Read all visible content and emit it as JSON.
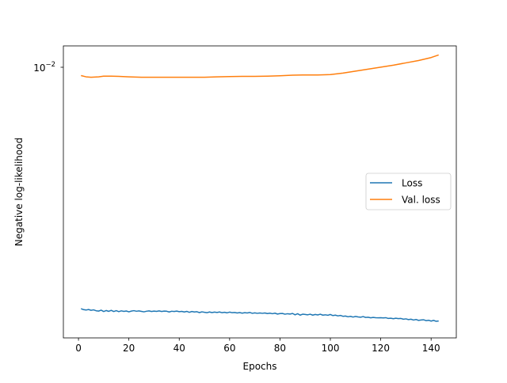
{
  "chart_data": {
    "type": "line",
    "title": "",
    "xlabel": "Epochs",
    "ylabel": "Negative log-likelihood",
    "y_scale": "log",
    "xlim": [
      -6,
      150
    ],
    "ylim": [
      0.00262,
      0.0113
    ],
    "x_ticks": [
      0,
      20,
      40,
      60,
      80,
      100,
      120,
      140
    ],
    "x_tick_labels": [
      "0",
      "20",
      "40",
      "60",
      "80",
      "100",
      "120",
      "140"
    ],
    "y_tick_base": "10",
    "y_tick_exponent": "−2",
    "legend_position": "center-right",
    "grid": false,
    "series": [
      {
        "name": "Loss",
        "color": "#1f77b4",
        "x": [
          1,
          2,
          3,
          4,
          5,
          6,
          7,
          8,
          9,
          10,
          11,
          12,
          13,
          14,
          15,
          16,
          17,
          18,
          19,
          20,
          21,
          22,
          23,
          24,
          25,
          26,
          27,
          28,
          29,
          30,
          31,
          32,
          33,
          34,
          35,
          36,
          37,
          38,
          39,
          40,
          41,
          42,
          43,
          44,
          45,
          46,
          47,
          48,
          49,
          50,
          51,
          52,
          53,
          54,
          55,
          56,
          57,
          58,
          59,
          60,
          61,
          62,
          63,
          64,
          65,
          66,
          67,
          68,
          69,
          70,
          71,
          72,
          73,
          74,
          75,
          76,
          77,
          78,
          79,
          80,
          81,
          82,
          83,
          84,
          85,
          86,
          87,
          88,
          89,
          90,
          91,
          92,
          93,
          94,
          95,
          96,
          97,
          98,
          99,
          100,
          101,
          102,
          103,
          104,
          105,
          106,
          107,
          108,
          109,
          110,
          111,
          112,
          113,
          114,
          115,
          116,
          117,
          118,
          119,
          120,
          121,
          122,
          123,
          124,
          125,
          126,
          127,
          128,
          129,
          130,
          131,
          132,
          133,
          134,
          135,
          136,
          137,
          138,
          139,
          140,
          141,
          142,
          143
        ],
        "y": [
          0.003033,
          0.003018,
          0.003012,
          0.00302,
          0.003008,
          0.003015,
          0.003001,
          0.002996,
          0.00301,
          0.00299,
          0.003005,
          0.002992,
          0.003008,
          0.00299,
          0.003003,
          0.002988,
          0.003,
          0.002992,
          0.002998,
          0.002985,
          0.002996,
          0.003003,
          0.002994,
          0.002999,
          0.002992,
          0.002985,
          0.002994,
          0.002999,
          0.00299,
          0.002996,
          0.002992,
          0.002999,
          0.00299,
          0.002996,
          0.002994,
          0.002983,
          0.002994,
          0.00299,
          0.002996,
          0.002987,
          0.002992,
          0.002983,
          0.002992,
          0.002978,
          0.00299,
          0.002983,
          0.002987,
          0.002974,
          0.002985,
          0.002978,
          0.002972,
          0.002983,
          0.002974,
          0.002981,
          0.002976,
          0.002983,
          0.002972,
          0.002978,
          0.00297,
          0.002981,
          0.002972,
          0.002976,
          0.002968,
          0.002974,
          0.002965,
          0.002972,
          0.002968,
          0.002976,
          0.002963,
          0.00297,
          0.002963,
          0.002968,
          0.002963,
          0.002968,
          0.002959,
          0.002965,
          0.002957,
          0.002965,
          0.002952,
          0.002959,
          0.002961,
          0.00295,
          0.002957,
          0.002952,
          0.002961,
          0.002941,
          0.002957,
          0.002936,
          0.00295,
          0.002946,
          0.002941,
          0.00295,
          0.002936,
          0.002946,
          0.002939,
          0.00295,
          0.002936,
          0.002941,
          0.002934,
          0.002946,
          0.00293,
          0.002936,
          0.002925,
          0.002932,
          0.002919,
          0.002923,
          0.002912,
          0.002919,
          0.002908,
          0.002917,
          0.00291,
          0.002906,
          0.002915,
          0.002903,
          0.002906,
          0.002897,
          0.002903,
          0.002899,
          0.002897,
          0.002899,
          0.002895,
          0.002899,
          0.002888,
          0.002891,
          0.002884,
          0.002891,
          0.002886,
          0.002888,
          0.002877,
          0.002882,
          0.002871,
          0.002877,
          0.002865,
          0.002873,
          0.00286,
          0.002865,
          0.002869,
          0.002856,
          0.002862,
          0.00285,
          0.00286,
          0.002847,
          0.002852
        ]
      },
      {
        "name": "Val. loss",
        "color": "#ff7f0e",
        "x": [
          1,
          3,
          5,
          8,
          10,
          13,
          16,
          20,
          25,
          30,
          35,
          40,
          45,
          50,
          55,
          60,
          65,
          70,
          75,
          80,
          85,
          90,
          95,
          100,
          105,
          110,
          115,
          120,
          125,
          130,
          135,
          140,
          143
        ],
        "y": [
          0.00974,
          0.00968,
          0.00966,
          0.00968,
          0.00971,
          0.00971,
          0.0097,
          0.00968,
          0.00966,
          0.00966,
          0.00966,
          0.00966,
          0.00966,
          0.00966,
          0.00968,
          0.00969,
          0.0097,
          0.0097,
          0.00971,
          0.00973,
          0.00976,
          0.00977,
          0.00977,
          0.00979,
          0.00986,
          0.00996,
          0.01006,
          0.01016,
          0.01026,
          0.01038,
          0.0105,
          0.01066,
          0.0108
        ]
      }
    ]
  }
}
